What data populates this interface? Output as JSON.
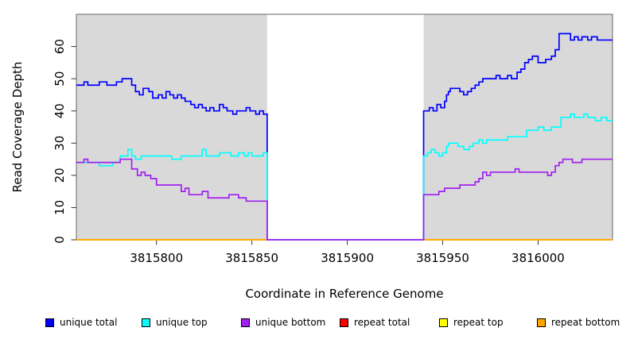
{
  "figure": {
    "type_hint": "R-style genome read-coverage step plot with masked repeat region",
    "background_color": "#ffffff",
    "panel_color": "#d9d9d9",
    "box_color": "#666666",
    "tick_color": "#333333",
    "text_color": "#000000"
  },
  "chart_data": {
    "type": "line",
    "title": "",
    "xlabel": "Coordinate in Reference Genome",
    "ylabel": "Read Coverage Depth",
    "xlim": [
      3815758,
      3816039
    ],
    "ylim": [
      0,
      70
    ],
    "x_ticks": [
      3815800,
      3815850,
      3815900,
      3815950,
      3816000
    ],
    "y_ticks": [
      0,
      10,
      20,
      30,
      40,
      50,
      60
    ],
    "grid": false,
    "legend_position": "bottom",
    "shaded_panels": [
      [
        3815758,
        3815858
      ],
      [
        3815940,
        3816039
      ]
    ],
    "gap": {
      "start": 3815858,
      "end": 3815940,
      "note": "all series drop to 0 in white unshaded region"
    },
    "series": [
      {
        "name": "repeat total",
        "color": "#ff0000",
        "constant": 0
      },
      {
        "name": "repeat top",
        "color": "#ffff00",
        "constant": 0
      },
      {
        "name": "repeat bottom",
        "color": "#ffa500",
        "constant": 0
      },
      {
        "name": "unique total",
        "color": "#0000ff",
        "steps_left": [
          [
            3815758,
            48
          ],
          [
            3815762,
            49
          ],
          [
            3815764,
            48
          ],
          [
            3815770,
            49
          ],
          [
            3815774,
            48
          ],
          [
            3815779,
            49
          ],
          [
            3815782,
            50
          ],
          [
            3815787,
            48
          ],
          [
            3815789,
            46
          ],
          [
            3815791,
            45
          ],
          [
            3815793,
            47
          ],
          [
            3815796,
            46
          ],
          [
            3815798,
            44
          ],
          [
            3815801,
            45
          ],
          [
            3815803,
            44
          ],
          [
            3815805,
            46
          ],
          [
            3815807,
            45
          ],
          [
            3815809,
            44
          ],
          [
            3815811,
            45
          ],
          [
            3815813,
            44
          ],
          [
            3815815,
            43
          ],
          [
            3815818,
            42
          ],
          [
            3815820,
            41
          ],
          [
            3815822,
            42
          ],
          [
            3815824,
            41
          ],
          [
            3815826,
            40
          ],
          [
            3815828,
            41
          ],
          [
            3815830,
            40
          ],
          [
            3815833,
            42
          ],
          [
            3815835,
            41
          ],
          [
            3815837,
            40
          ],
          [
            3815840,
            39
          ],
          [
            3815842,
            40
          ],
          [
            3815847,
            41
          ],
          [
            3815849,
            40
          ],
          [
            3815852,
            39
          ],
          [
            3815854,
            40
          ],
          [
            3815856,
            39
          ]
        ],
        "steps_right": [
          [
            3815940,
            40
          ],
          [
            3815943,
            41
          ],
          [
            3815945,
            40
          ],
          [
            3815947,
            42
          ],
          [
            3815949,
            41
          ],
          [
            3815951,
            43
          ],
          [
            3815952,
            45
          ],
          [
            3815953,
            46
          ],
          [
            3815954,
            47
          ],
          [
            3815959,
            46
          ],
          [
            3815961,
            45
          ],
          [
            3815963,
            46
          ],
          [
            3815965,
            47
          ],
          [
            3815967,
            48
          ],
          [
            3815969,
            49
          ],
          [
            3815971,
            50
          ],
          [
            3815978,
            51
          ],
          [
            3815980,
            50
          ],
          [
            3815984,
            51
          ],
          [
            3815986,
            50
          ],
          [
            3815989,
            52
          ],
          [
            3815991,
            53
          ],
          [
            3815993,
            55
          ],
          [
            3815995,
            56
          ],
          [
            3815997,
            57
          ],
          [
            3816000,
            55
          ],
          [
            3816004,
            56
          ],
          [
            3816007,
            57
          ],
          [
            3816009,
            59
          ],
          [
            3816011,
            64
          ],
          [
            3816017,
            62
          ],
          [
            3816019,
            63
          ],
          [
            3816021,
            62
          ],
          [
            3816023,
            63
          ],
          [
            3816026,
            62
          ],
          [
            3816028,
            63
          ],
          [
            3816031,
            62
          ]
        ]
      },
      {
        "name": "unique top",
        "color": "#00ffff",
        "steps_left": [
          [
            3815758,
            24
          ],
          [
            3815770,
            23
          ],
          [
            3815777,
            24
          ],
          [
            3815781,
            26
          ],
          [
            3815785,
            28
          ],
          [
            3815787,
            26
          ],
          [
            3815789,
            25
          ],
          [
            3815792,
            26
          ],
          [
            3815808,
            25
          ],
          [
            3815813,
            26
          ],
          [
            3815824,
            28
          ],
          [
            3815826,
            26
          ],
          [
            3815833,
            27
          ],
          [
            3815839,
            26
          ],
          [
            3815843,
            27
          ],
          [
            3815846,
            26
          ],
          [
            3815848,
            27
          ],
          [
            3815850,
            26
          ],
          [
            3815856,
            27
          ]
        ],
        "steps_right": [
          [
            3815940,
            26
          ],
          [
            3815942,
            27
          ],
          [
            3815944,
            28
          ],
          [
            3815946,
            27
          ],
          [
            3815948,
            26
          ],
          [
            3815950,
            27
          ],
          [
            3815952,
            29
          ],
          [
            3815953,
            30
          ],
          [
            3815958,
            29
          ],
          [
            3815961,
            28
          ],
          [
            3815964,
            29
          ],
          [
            3815966,
            30
          ],
          [
            3815969,
            31
          ],
          [
            3815971,
            30
          ],
          [
            3815973,
            31
          ],
          [
            3815984,
            32
          ],
          [
            3815994,
            34
          ],
          [
            3816000,
            35
          ],
          [
            3816003,
            34
          ],
          [
            3816007,
            35
          ],
          [
            3816012,
            38
          ],
          [
            3816017,
            39
          ],
          [
            3816019,
            38
          ],
          [
            3816024,
            39
          ],
          [
            3816026,
            38
          ],
          [
            3816030,
            37
          ],
          [
            3816033,
            38
          ],
          [
            3816036,
            37
          ]
        ]
      },
      {
        "name": "unique bottom",
        "color": "#a020f0",
        "steps_left": [
          [
            3815758,
            24
          ],
          [
            3815762,
            25
          ],
          [
            3815764,
            24
          ],
          [
            3815781,
            25
          ],
          [
            3815787,
            22
          ],
          [
            3815790,
            20
          ],
          [
            3815792,
            21
          ],
          [
            3815794,
            20
          ],
          [
            3815797,
            19
          ],
          [
            3815800,
            17
          ],
          [
            3815813,
            15
          ],
          [
            3815815,
            16
          ],
          [
            3815817,
            14
          ],
          [
            3815824,
            15
          ],
          [
            3815827,
            13
          ],
          [
            3815838,
            14
          ],
          [
            3815843,
            13
          ],
          [
            3815847,
            12
          ]
        ],
        "steps_right": [
          [
            3815940,
            14
          ],
          [
            3815948,
            15
          ],
          [
            3815951,
            16
          ],
          [
            3815959,
            17
          ],
          [
            3815967,
            18
          ],
          [
            3815969,
            19
          ],
          [
            3815971,
            21
          ],
          [
            3815973,
            20
          ],
          [
            3815975,
            21
          ],
          [
            3815988,
            22
          ],
          [
            3815990,
            21
          ],
          [
            3816005,
            20
          ],
          [
            3816007,
            21
          ],
          [
            3816009,
            23
          ],
          [
            3816011,
            24
          ],
          [
            3816013,
            25
          ],
          [
            3816018,
            24
          ],
          [
            3816023,
            25
          ]
        ]
      }
    ],
    "legend": [
      {
        "label": "unique total",
        "color": "#0000ff"
      },
      {
        "label": "unique top",
        "color": "#00ffff"
      },
      {
        "label": "unique bottom",
        "color": "#a020f0"
      },
      {
        "label": "repeat total",
        "color": "#ff0000"
      },
      {
        "label": "repeat top",
        "color": "#ffff00"
      },
      {
        "label": "repeat bottom",
        "color": "#ffa500"
      }
    ],
    "legend_item_x": [
      57,
      178,
      303,
      427,
      552,
      675
    ]
  }
}
